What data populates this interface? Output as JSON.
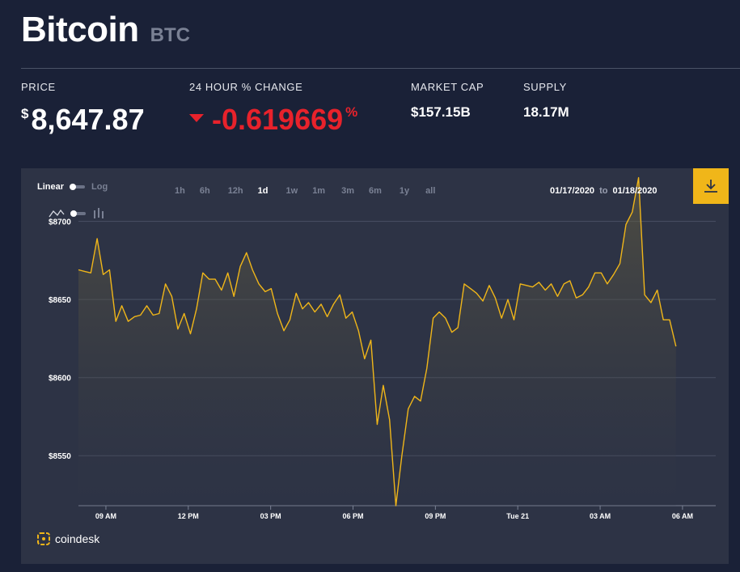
{
  "header": {
    "name": "Bitcoin",
    "ticker": "BTC"
  },
  "stats": {
    "price_label": "PRICE",
    "price_symbol": "$",
    "price_value": "8,647.87",
    "change_label": "24 HOUR % CHANGE",
    "change_value": "-0.619669",
    "change_unit": "%",
    "change_direction": "down",
    "market_cap_label": "MARKET CAP",
    "market_cap_value": "$157.15B",
    "supply_label": "SUPPLY",
    "supply_value": "18.17M"
  },
  "controls": {
    "scale_linear": "Linear",
    "scale_log": "Log",
    "ranges": [
      "1h",
      "6h",
      "12h",
      "1d",
      "1w",
      "1m",
      "3m",
      "6m",
      "1y",
      "all"
    ],
    "active_range": "1d",
    "date_from": "01/17/2020",
    "date_to_word": "to",
    "date_to": "01/18/2020",
    "download_icon": "download-icon",
    "line_icon": "line-chart-icon",
    "bar_icon": "bar-chart-icon"
  },
  "brand": {
    "name": "coindesk",
    "logo_icon": "coindesk-logo-icon"
  },
  "colors": {
    "background": "#1a2137",
    "panel": "#2d3345",
    "line": "#f0b619",
    "negative": "#e8222b",
    "accent_button": "#f0b619"
  },
  "chart_data": {
    "type": "area",
    "ylim": [
      8518,
      8734
    ],
    "y_ticks": [
      8700,
      8650,
      8600,
      8550
    ],
    "y_tick_labels": [
      "$8700",
      "$8650",
      "$8600",
      "$8550"
    ],
    "x_ticks": [
      {
        "x": 1,
        "label": "09 AM"
      },
      {
        "x": 4,
        "label": "12 PM"
      },
      {
        "x": 7,
        "label": "03 PM"
      },
      {
        "x": 10,
        "label": "06 PM"
      },
      {
        "x": 13,
        "label": "09 PM"
      },
      {
        "x": 16,
        "label": "Tue 21"
      },
      {
        "x": 19,
        "label": "03 AM"
      },
      {
        "x": 22,
        "label": "06 AM"
      }
    ],
    "x_range": [
      0,
      23.21
    ],
    "grid": true,
    "series": [
      {
        "values": [
          [
            0,
            8669
          ],
          [
            0.22,
            8668
          ],
          [
            0.45,
            8667
          ],
          [
            0.68,
            8689
          ],
          [
            0.9,
            8666
          ],
          [
            1.13,
            8669
          ],
          [
            1.36,
            8636
          ],
          [
            1.58,
            8646
          ],
          [
            1.81,
            8636
          ],
          [
            2.04,
            8639
          ],
          [
            2.26,
            8640
          ],
          [
            2.49,
            8646
          ],
          [
            2.72,
            8640
          ],
          [
            2.94,
            8641
          ],
          [
            3.17,
            8660
          ],
          [
            3.4,
            8652
          ],
          [
            3.62,
            8631
          ],
          [
            3.85,
            8641
          ],
          [
            4.08,
            8628
          ],
          [
            4.3,
            8644
          ],
          [
            4.53,
            8667
          ],
          [
            4.76,
            8663
          ],
          [
            4.98,
            8663
          ],
          [
            5.21,
            8656
          ],
          [
            5.44,
            8667
          ],
          [
            5.66,
            8652
          ],
          [
            5.89,
            8671
          ],
          [
            6.12,
            8680
          ],
          [
            6.34,
            8669
          ],
          [
            6.57,
            8660
          ],
          [
            6.8,
            8655
          ],
          [
            7.02,
            8657
          ],
          [
            7.25,
            8641
          ],
          [
            7.48,
            8630
          ],
          [
            7.7,
            8637
          ],
          [
            7.93,
            8654
          ],
          [
            8.16,
            8644
          ],
          [
            8.38,
            8648
          ],
          [
            8.61,
            8642
          ],
          [
            8.84,
            8647
          ],
          [
            9.06,
            8639
          ],
          [
            9.29,
            8647
          ],
          [
            9.52,
            8653
          ],
          [
            9.74,
            8638
          ],
          [
            9.97,
            8642
          ],
          [
            10.2,
            8630
          ],
          [
            10.42,
            8612
          ],
          [
            10.65,
            8624
          ],
          [
            10.88,
            8570
          ],
          [
            11.1,
            8595
          ],
          [
            11.33,
            8573
          ],
          [
            11.56,
            8518
          ],
          [
            11.78,
            8550
          ],
          [
            12.01,
            8580
          ],
          [
            12.24,
            8588
          ],
          [
            12.46,
            8585
          ],
          [
            12.69,
            8606
          ],
          [
            12.92,
            8638
          ],
          [
            13.14,
            8642
          ],
          [
            13.37,
            8638
          ],
          [
            13.6,
            8629
          ],
          [
            13.82,
            8632
          ],
          [
            14.05,
            8660
          ],
          [
            14.28,
            8657
          ],
          [
            14.5,
            8654
          ],
          [
            14.73,
            8649
          ],
          [
            14.96,
            8659
          ],
          [
            15.18,
            8651
          ],
          [
            15.41,
            8638
          ],
          [
            15.64,
            8650
          ],
          [
            15.86,
            8637
          ],
          [
            16.09,
            8660
          ],
          [
            16.32,
            8659
          ],
          [
            16.54,
            8658
          ],
          [
            16.77,
            8661
          ],
          [
            17.0,
            8656
          ],
          [
            17.22,
            8660
          ],
          [
            17.45,
            8652
          ],
          [
            17.68,
            8660
          ],
          [
            17.9,
            8662
          ],
          [
            18.13,
            8651
          ],
          [
            18.36,
            8653
          ],
          [
            18.58,
            8658
          ],
          [
            18.81,
            8667
          ],
          [
            19.04,
            8667
          ],
          [
            19.26,
            8660
          ],
          [
            19.49,
            8666
          ],
          [
            19.72,
            8673
          ],
          [
            19.94,
            8698
          ],
          [
            20.17,
            8706
          ],
          [
            20.4,
            8728
          ],
          [
            20.62,
            8653
          ],
          [
            20.85,
            8648
          ],
          [
            21.08,
            8656
          ],
          [
            21.3,
            8637
          ],
          [
            21.53,
            8637
          ],
          [
            21.76,
            8620
          ]
        ]
      }
    ]
  }
}
